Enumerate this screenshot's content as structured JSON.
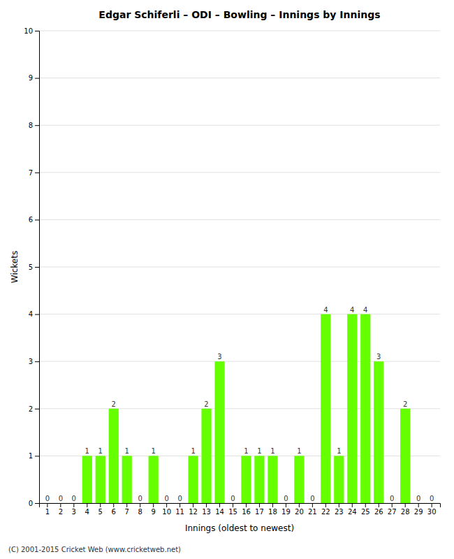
{
  "chart_data": {
    "type": "bar",
    "title": "Edgar Schiferli – ODI – Bowling – Innings by Innings",
    "xlabel": "Innings (oldest to newest)",
    "ylabel": "Wickets",
    "categories": [
      "1",
      "2",
      "3",
      "4",
      "5",
      "6",
      "7",
      "8",
      "9",
      "10",
      "11",
      "12",
      "13",
      "14",
      "15",
      "16",
      "17",
      "18",
      "19",
      "20",
      "21",
      "22",
      "23",
      "24",
      "25",
      "26",
      "27",
      "28",
      "29",
      "30"
    ],
    "values": [
      0,
      0,
      0,
      1,
      1,
      2,
      1,
      0,
      1,
      0,
      0,
      1,
      2,
      3,
      0,
      1,
      1,
      1,
      0,
      1,
      0,
      4,
      1,
      4,
      4,
      3,
      0,
      2,
      0,
      0
    ],
    "color": "#66ff00",
    "ylim": [
      0,
      10
    ],
    "yticks": [
      0,
      1,
      2,
      3,
      4,
      5,
      6,
      7,
      8,
      9,
      10
    ],
    "grid": true,
    "data_labels": true,
    "footer": "(C) 2001-2015 Cricket Web (www.cricketweb.net)"
  }
}
